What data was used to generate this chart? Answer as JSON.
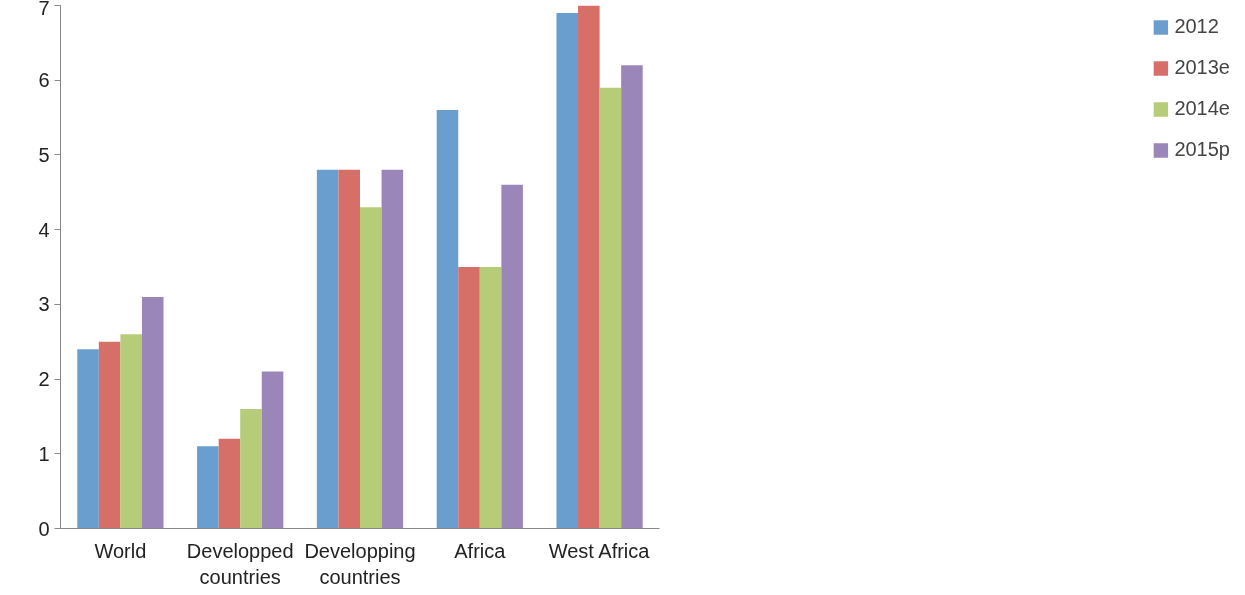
{
  "chart_data": {
    "type": "bar",
    "categories": [
      "World",
      "Developped countries",
      "Developping countries",
      "Africa",
      "West Africa"
    ],
    "series": [
      {
        "name": "2012",
        "color": "#6a9ecf",
        "values": [
          2.4,
          1.1,
          4.8,
          5.6,
          6.9
        ]
      },
      {
        "name": "2013e",
        "color": "#d76f69",
        "values": [
          2.5,
          1.2,
          4.8,
          3.5,
          7.0
        ]
      },
      {
        "name": "2014e",
        "color": "#b6cc78",
        "values": [
          2.6,
          1.6,
          4.3,
          3.5,
          5.9
        ]
      },
      {
        "name": "2015p",
        "color": "#9b86ba",
        "values": [
          3.1,
          2.1,
          4.8,
          4.6,
          6.2
        ]
      }
    ],
    "ylim": [
      0,
      7
    ],
    "yticks": [
      0,
      1,
      2,
      3,
      4,
      5,
      6,
      7
    ],
    "grid": false,
    "legend": "right"
  }
}
